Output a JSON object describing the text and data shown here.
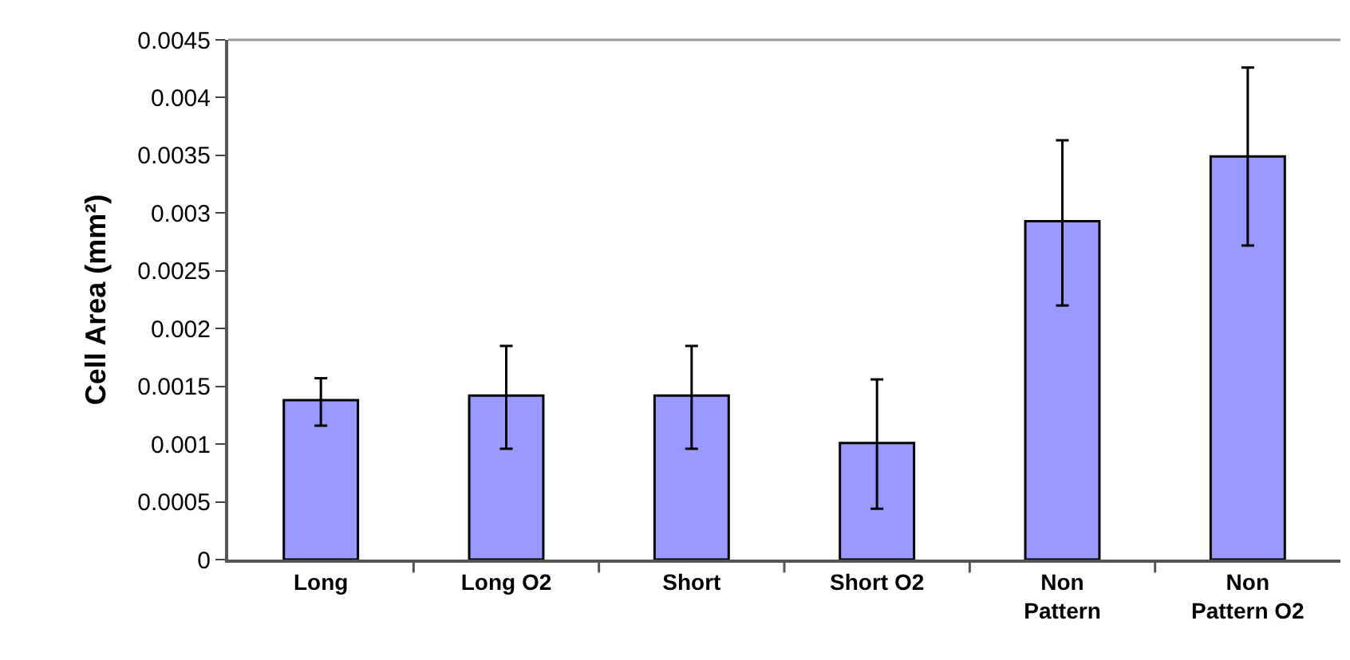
{
  "chart_data": {
    "type": "bar",
    "ylabel": "Cell Area (mm²)",
    "categories": [
      "Long",
      "Long O2",
      "Short",
      "Short O2",
      "Non\nPattern",
      "Non\nPattern O2"
    ],
    "values": [
      0.00138,
      0.00142,
      0.00142,
      0.00101,
      0.00293,
      0.00349
    ],
    "errors": [
      [
        0.00116,
        0.00157
      ],
      [
        0.00096,
        0.00185
      ],
      [
        0.00096,
        0.00185
      ],
      [
        0.00044,
        0.00156
      ],
      [
        0.0022,
        0.00363
      ],
      [
        0.00272,
        0.00426
      ]
    ],
    "color": "#9999ff",
    "ylim": [
      0,
      0.0045
    ],
    "yticks": [
      0,
      0.0005,
      0.001,
      0.0015,
      0.002,
      0.0025,
      0.003,
      0.0035,
      0.004,
      0.0045
    ]
  }
}
